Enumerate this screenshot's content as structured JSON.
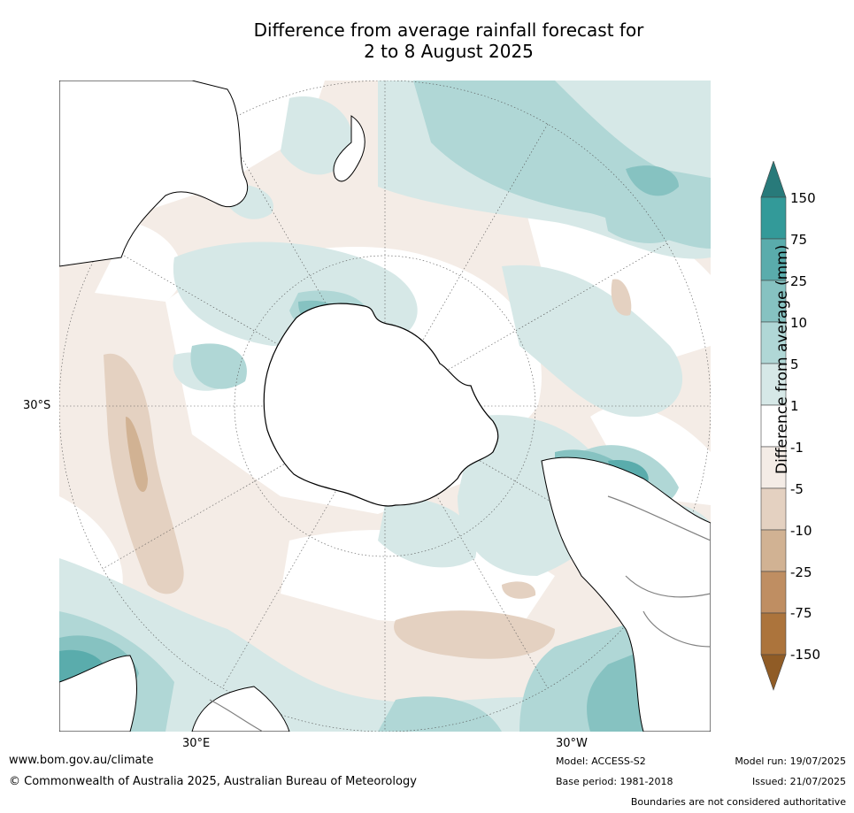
{
  "title": {
    "line1": "Difference from average rainfall forecast for",
    "line2": "2 to 8 August 2025"
  },
  "map": {
    "projection": "south-polar-stereographic",
    "grid_labels": {
      "lat_left": "30°S",
      "lon_bottom_left": "30°E",
      "lon_bottom_right": "30°W"
    },
    "colors": {
      "ocean_base": "#ffffff",
      "coastline": "#000000",
      "border": "#808080",
      "graticule": "#555555"
    }
  },
  "colorbar": {
    "label": "Difference from average (mm)",
    "ticks": [
      "150",
      "75",
      "25",
      "10",
      "5",
      "1",
      "-1",
      "-5",
      "-10",
      "-25",
      "-75",
      "-150"
    ],
    "colors": {
      "over": "#287a7a",
      "b150_75": "#339a99",
      "b75_25": "#5aacac",
      "b25_10": "#86c2c1",
      "b10_5": "#b0d7d6",
      "b5_1": "#d6e8e7",
      "b1_m1": "#ffffff",
      "bm1_m5": "#f4ece6",
      "bm5_m10": "#e4d1c1",
      "bm10_m25": "#d1b293",
      "bm25_m75": "#bf8e62",
      "bm75_m150": "#ac743c",
      "under": "#905c26"
    }
  },
  "footer": {
    "url": "www.bom.gov.au/climate",
    "copyright": "© Commonwealth of Australia 2025, Australian Bureau of Meteorology",
    "model": "Model: ACCESS-S2",
    "base_period": "Base period: 1981-2018",
    "model_run": "Model run: 19/07/2025",
    "issued": "Issued: 21/07/2025",
    "disclaimer": "Boundaries are not considered authoritative"
  }
}
